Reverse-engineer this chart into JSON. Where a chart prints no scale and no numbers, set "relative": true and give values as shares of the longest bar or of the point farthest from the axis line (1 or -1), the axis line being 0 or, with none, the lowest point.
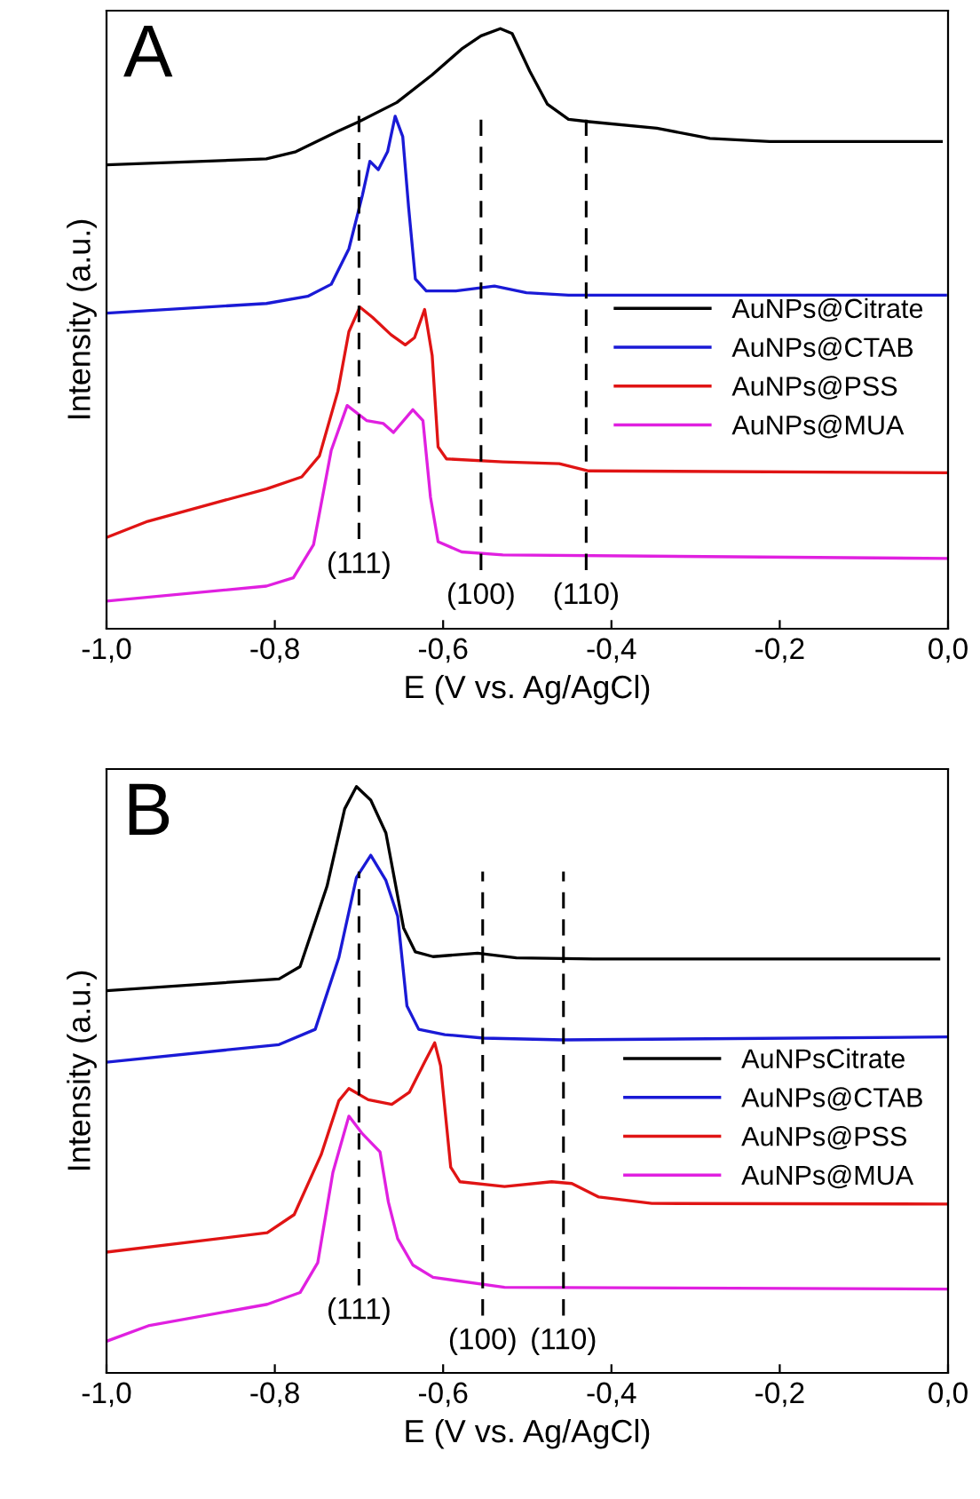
{
  "chart_data": [
    {
      "type": "line",
      "relative": true,
      "xlabel": "E (V vs. Ag/AgCl)",
      "ylabel": "Intensity (a.u.)",
      "legend": "right",
      "tick_labels": "x",
      "xlim": [
        -1.0,
        0.0
      ],
      "xticks": [
        {
          "value": -1.0,
          "label": "-1,0"
        },
        {
          "value": -0.8,
          "label": "-0,8"
        },
        {
          "value": -0.6,
          "label": "-0,6"
        },
        {
          "value": -0.4,
          "label": "-0,4"
        },
        {
          "value": -0.2,
          "label": "-0,2"
        },
        {
          "value": 0.0,
          "label": "0,0"
        }
      ],
      "annotations": [
        "A",
        "(111)",
        "(100)",
        "(110)"
      ],
      "ref_lines": [
        {
          "axis": "x",
          "value": -0.7,
          "color": "#000000",
          "line_style": "dashed"
        },
        {
          "axis": "x",
          "value": -0.555,
          "color": "#000000",
          "line_style": "dashed"
        },
        {
          "axis": "x",
          "value": -0.43,
          "color": "#000000",
          "line_style": "dashed"
        }
      ],
      "series": [
        {
          "name": "AuNPs@Citrate",
          "color": "#000000",
          "x": [
            -1.0,
            -0.81,
            -0.775,
            -0.725,
            -0.7,
            -0.655,
            -0.613,
            -0.578,
            -0.555,
            -0.532,
            -0.518,
            -0.497,
            -0.476,
            -0.451,
            -0.427,
            -0.346,
            -0.283,
            -0.212,
            -0.008
          ],
          "values": [
            0.773,
            0.783,
            0.795,
            0.829,
            0.845,
            0.877,
            0.923,
            0.966,
            0.988,
            1.0,
            0.992,
            0.929,
            0.874,
            0.849,
            0.845,
            0.834,
            0.817,
            0.812,
            0.812
          ]
        },
        {
          "name": "AuNPs@CTAB",
          "color": "#1a1ad6",
          "x": [
            -1.0,
            -0.81,
            -0.761,
            -0.733,
            -0.712,
            -0.696,
            -0.687,
            -0.677,
            -0.666,
            -0.657,
            -0.648,
            -0.641,
            -0.633,
            -0.62,
            -0.585,
            -0.539,
            -0.501,
            -0.451,
            -0.003
          ],
          "values": [
            0.526,
            0.542,
            0.554,
            0.574,
            0.633,
            0.722,
            0.779,
            0.765,
            0.795,
            0.854,
            0.82,
            0.702,
            0.583,
            0.563,
            0.563,
            0.571,
            0.56,
            0.556,
            0.556
          ]
        },
        {
          "name": "AuNPs@PSS",
          "color": "#e01414",
          "x": [
            -1.0,
            -0.951,
            -0.81,
            -0.768,
            -0.747,
            -0.725,
            -0.712,
            -0.699,
            -0.684,
            -0.662,
            -0.645,
            -0.634,
            -0.622,
            -0.613,
            -0.606,
            -0.596,
            -0.529,
            -0.462,
            -0.427,
            0.0
          ],
          "values": [
            0.152,
            0.179,
            0.233,
            0.253,
            0.288,
            0.396,
            0.495,
            0.536,
            0.519,
            0.49,
            0.473,
            0.485,
            0.532,
            0.455,
            0.303,
            0.283,
            0.278,
            0.275,
            0.263,
            0.26
          ]
        },
        {
          "name": "AuNPs@MUA",
          "color": "#e020e0",
          "x": [
            -1.0,
            -0.81,
            -0.778,
            -0.754,
            -0.733,
            -0.714,
            -0.691,
            -0.671,
            -0.659,
            -0.636,
            -0.624,
            -0.615,
            -0.606,
            -0.578,
            -0.529,
            0.0
          ],
          "values": [
            0.046,
            0.071,
            0.085,
            0.14,
            0.297,
            0.372,
            0.347,
            0.342,
            0.327,
            0.365,
            0.347,
            0.219,
            0.145,
            0.128,
            0.123,
            0.117
          ]
        }
      ]
    },
    {
      "type": "line",
      "relative": true,
      "xlabel": "E (V vs. Ag/AgCl)",
      "ylabel": "Intensity (a.u.)",
      "legend": "right",
      "tick_labels": "x",
      "xlim": [
        -1.0,
        0.0
      ],
      "xticks": [
        {
          "value": -1.0,
          "label": "-1,0"
        },
        {
          "value": -0.8,
          "label": "-0,8"
        },
        {
          "value": -0.6,
          "label": "-0,6"
        },
        {
          "value": -0.4,
          "label": "-0,4"
        },
        {
          "value": -0.2,
          "label": "-0,2"
        },
        {
          "value": 0.0,
          "label": "0,0"
        }
      ],
      "annotations": [
        "B",
        "(111)",
        "(100)",
        "(110)"
      ],
      "ref_lines": [
        {
          "axis": "x",
          "value": -0.7,
          "color": "#000000",
          "line_style": "dashed"
        },
        {
          "axis": "x",
          "value": -0.553,
          "color": "#000000",
          "line_style": "dashed"
        },
        {
          "axis": "x",
          "value": -0.457,
          "color": "#000000",
          "line_style": "dashed"
        }
      ],
      "series": [
        {
          "name": "AuNPsCitrate",
          "color": "#000000",
          "x": [
            -1.0,
            -0.795,
            -0.77,
            -0.738,
            -0.717,
            -0.703,
            -0.686,
            -0.668,
            -0.647,
            -0.633,
            -0.612,
            -0.559,
            -0.513,
            -0.422,
            -0.011
          ],
          "values": [
            0.652,
            0.672,
            0.693,
            0.83,
            0.962,
            1.0,
            0.977,
            0.921,
            0.759,
            0.718,
            0.71,
            0.716,
            0.708,
            0.706,
            0.706
          ]
        },
        {
          "name": "AuNPs@CTAB",
          "color": "#1a1ad6",
          "x": [
            -1.0,
            -0.795,
            -0.752,
            -0.724,
            -0.703,
            -0.686,
            -0.668,
            -0.654,
            -0.643,
            -0.629,
            -0.598,
            -0.552,
            -0.457,
            -0.001
          ],
          "values": [
            0.53,
            0.56,
            0.586,
            0.708,
            0.845,
            0.883,
            0.84,
            0.779,
            0.626,
            0.586,
            0.577,
            0.571,
            0.568,
            0.573
          ]
        },
        {
          "name": "AuNPs@PSS",
          "color": "#e01414",
          "x": [
            -1.0,
            -0.809,
            -0.777,
            -0.745,
            -0.724,
            -0.712,
            -0.689,
            -0.661,
            -0.64,
            -0.622,
            -0.61,
            -0.603,
            -0.591,
            -0.58,
            -0.527,
            -0.471,
            -0.447,
            -0.415,
            -0.352,
            0.0
          ],
          "values": [
            0.206,
            0.239,
            0.27,
            0.372,
            0.464,
            0.485,
            0.466,
            0.458,
            0.479,
            0.53,
            0.563,
            0.524,
            0.351,
            0.326,
            0.318,
            0.326,
            0.323,
            0.3,
            0.289,
            0.288
          ]
        },
        {
          "name": "AuNPs@MUA",
          "color": "#e020e0",
          "x": [
            -1.0,
            -0.949,
            -0.809,
            -0.77,
            -0.749,
            -0.731,
            -0.712,
            -0.696,
            -0.675,
            -0.665,
            -0.654,
            -0.636,
            -0.612,
            -0.527,
            0.0
          ],
          "values": [
            0.054,
            0.081,
            0.117,
            0.137,
            0.188,
            0.342,
            0.438,
            0.408,
            0.377,
            0.291,
            0.229,
            0.184,
            0.163,
            0.146,
            0.143
          ]
        }
      ]
    }
  ]
}
